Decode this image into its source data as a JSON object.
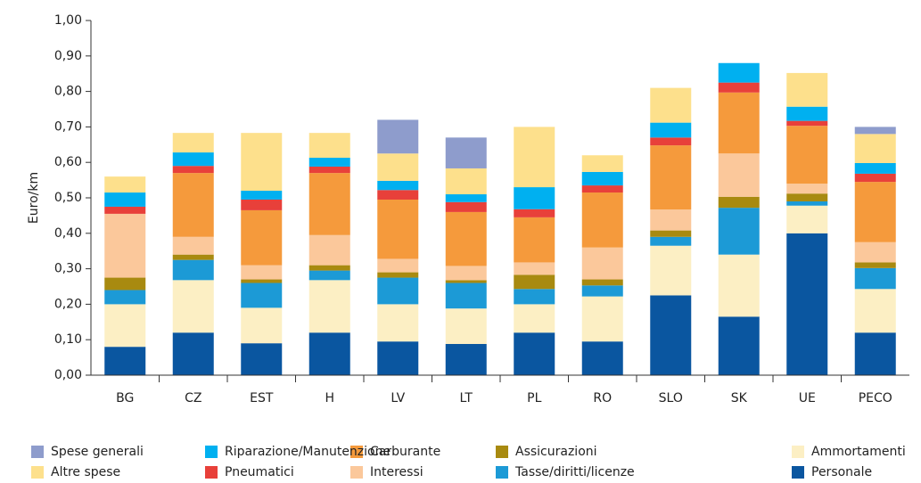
{
  "chart_data": {
    "type": "stacked_bar",
    "y_label": "Euro/km",
    "categories": [
      "BG",
      "CZ",
      "EST",
      "H",
      "LV",
      "LT",
      "PL",
      "RO",
      "SLO",
      "SK",
      "UE",
      "PECO"
    ],
    "ylim": [
      0,
      1
    ],
    "yticks": [
      {
        "value": 0,
        "label": "0,00"
      },
      {
        "value": 0.1,
        "label": "0,10"
      },
      {
        "value": 0.2,
        "label": "0,20"
      },
      {
        "value": 0.3,
        "label": "0,30"
      },
      {
        "value": 0.4,
        "label": "0,40"
      },
      {
        "value": 0.5,
        "label": "0,50"
      },
      {
        "value": 0.6,
        "label": "0,60"
      },
      {
        "value": 0.7,
        "label": "0,70"
      },
      {
        "value": 0.8,
        "label": "0,80"
      },
      {
        "value": 0.9,
        "label": "0,90"
      },
      {
        "value": 1,
        "label": "1,00"
      }
    ],
    "series": [
      {
        "name": "Personale",
        "color": "#0a56a0",
        "values": [
          0.08,
          0.12,
          0.09,
          0.12,
          0.095,
          0.088,
          0.12,
          0.095,
          0.225,
          0.165,
          0.4,
          0.12
        ]
      },
      {
        "name": "Ammortamenti",
        "color": "#fcefc4",
        "values": [
          0.12,
          0.148,
          0.1,
          0.148,
          0.105,
          0.1,
          0.08,
          0.127,
          0.14,
          0.175,
          0.078,
          0.123
        ]
      },
      {
        "name": "Tasse/diritti/licenze",
        "color": "#1c9ad6",
        "values": [
          0.04,
          0.057,
          0.07,
          0.027,
          0.075,
          0.072,
          0.043,
          0.031,
          0.025,
          0.132,
          0.012,
          0.059
        ]
      },
      {
        "name": "Assicurazioni",
        "color": "#a88a10",
        "values": [
          0.035,
          0.015,
          0.01,
          0.015,
          0.015,
          0.008,
          0.04,
          0.017,
          0.018,
          0.031,
          0.022,
          0.016
        ]
      },
      {
        "name": "Interessi",
        "color": "#fbc89b",
        "values": [
          0.18,
          0.05,
          0.04,
          0.085,
          0.038,
          0.04,
          0.035,
          0.09,
          0.059,
          0.122,
          0.028,
          0.057
        ]
      },
      {
        "name": "Carburante",
        "color": "#f59a3c",
        "values": [
          0,
          0.18,
          0.155,
          0.175,
          0.167,
          0.152,
          0.127,
          0.155,
          0.181,
          0.172,
          0.163,
          0.17
        ]
      },
      {
        "name": "Pneumatici",
        "color": "#e8403a",
        "values": [
          0.02,
          0.02,
          0.03,
          0.018,
          0.027,
          0.028,
          0.023,
          0.02,
          0.022,
          0.028,
          0.014,
          0.023
        ]
      },
      {
        "name": "Riparazione/Manutenzione",
        "color": "#00b0f0",
        "values": [
          0.04,
          0.038,
          0.025,
          0.025,
          0.026,
          0.022,
          0.062,
          0.038,
          0.042,
          0.055,
          0.04,
          0.03
        ]
      },
      {
        "name": "Altre spese",
        "color": "#fde08c",
        "values": [
          0.045,
          0.055,
          0.163,
          0.07,
          0.077,
          0.073,
          0.17,
          0.047,
          0.098,
          0,
          0.095,
          0.082
        ]
      },
      {
        "name": "Spese generali",
        "color": "#8e9ccc",
        "values": [
          0,
          0,
          0,
          0,
          0.095,
          0.087,
          0,
          0,
          0,
          0,
          0,
          0.02
        ]
      }
    ]
  }
}
